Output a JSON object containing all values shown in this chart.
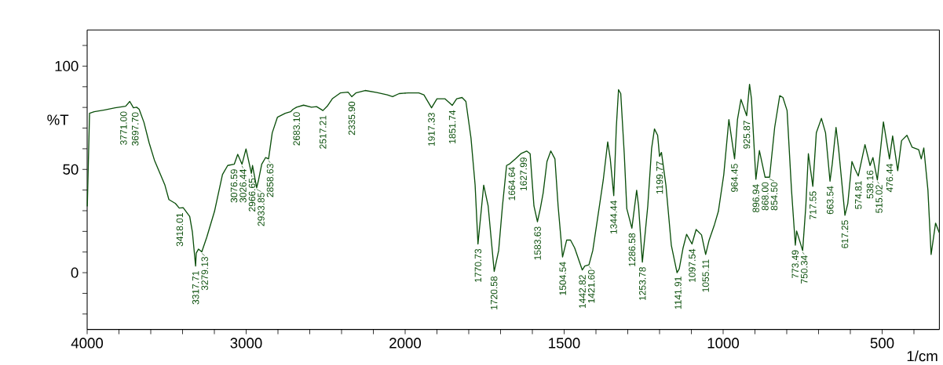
{
  "chart_data": [
    {
      "type": "line",
      "ylabel": "%T",
      "color": "#0b4f0b",
      "tick_labels": "xy",
      "x": [
        3999,
        3985,
        3956,
        3890,
        3824,
        3758,
        3732,
        3709,
        3689,
        3673,
        3643,
        3610,
        3577,
        3511,
        3486,
        3445,
        3421,
        3396,
        3355,
        3338,
        3318,
        3314,
        3300,
        3279,
        3248,
        3199,
        3149,
        3116,
        3075,
        3053,
        3026,
        3001,
        2967,
        2960,
        2934,
        2922,
        2902,
        2878,
        2859,
        2836,
        2803,
        2754,
        2721,
        2705,
        2683,
        2639,
        2589,
        2557,
        2517,
        2490,
        2458,
        2408,
        2359,
        2336,
        2310,
        2252,
        2178,
        2112,
        2079,
        2038,
        2000
      ],
      "values": [
        32.3,
        77.2,
        77.9,
        78.8,
        79.8,
        80.6,
        82.9,
        79.8,
        80.1,
        79.1,
        72.8,
        62.8,
        54.5,
        42.4,
        35.4,
        33.5,
        31.3,
        31.5,
        27.2,
        19.6,
        3.2,
        9.5,
        11.4,
        10.1,
        17.1,
        29.7,
        47.5,
        51.9,
        52.5,
        57.3,
        52.5,
        59.9,
        48.1,
        51.9,
        41.1,
        44.9,
        52.5,
        55.7,
        55.1,
        67.7,
        75.3,
        77.2,
        77.9,
        79.1,
        80.1,
        81.1,
        80.1,
        80.4,
        78.5,
        80.6,
        84.2,
        87.0,
        87.4,
        85.2,
        87.0,
        88.2,
        87.2,
        86.1,
        85.2,
        86.7,
        86.9
      ],
      "xlim": [
        4000,
        2000
      ],
      "ylim": [
        -27.5,
        117.5
      ],
      "xticks": [
        4000,
        {
          "value": 3800,
          "label": null
        },
        {
          "value": 3600,
          "label": null
        },
        {
          "value": 3400,
          "label": null
        },
        {
          "value": 3200,
          "label": null
        },
        3000,
        {
          "value": 2800,
          "label": null
        },
        {
          "value": 2600,
          "label": null
        },
        {
          "value": 2400,
          "label": null
        },
        {
          "value": 2200,
          "label": null
        }
      ],
      "yticks": [
        {
          "value": -20,
          "label": null
        },
        {
          "value": -10,
          "label": null
        },
        0,
        {
          "value": 10,
          "label": null
        },
        {
          "value": 20,
          "label": null
        },
        {
          "value": 30,
          "label": null
        },
        {
          "value": 40,
          "label": null
        },
        50,
        {
          "value": 60,
          "label": null
        },
        {
          "value": 70,
          "label": null
        },
        {
          "value": 80,
          "label": null
        },
        {
          "value": 90,
          "label": null
        },
        100,
        {
          "value": 110,
          "label": null
        }
      ],
      "annotations": [
        {
          "text": "3771.00",
          "x": 3771.0,
          "y": 80.4
        },
        {
          "text": "3697.70",
          "x": 3697.7,
          "y": 80.0
        },
        {
          "text": "3418.01",
          "x": 3418.01,
          "y": 31.3
        },
        {
          "text": "3317.71",
          "x": 3317.71,
          "y": 3.2
        },
        {
          "text": "3279.13",
          "x": 3279.13,
          "y": 10.1
        },
        {
          "text": "3076.59",
          "x": 3076.59,
          "y": 52.5
        },
        {
          "text": "3026.44",
          "x": 3026.44,
          "y": 52.5
        },
        {
          "text": "2966.65",
          "x": 2966.65,
          "y": 48.1
        },
        {
          "text": "2933.85",
          "x": 2933.85,
          "y": 41.1
        },
        {
          "text": "2858.63",
          "x": 2858.63,
          "y": 55.1
        },
        {
          "text": "2683.10",
          "x": 2683.1,
          "y": 80.1
        },
        {
          "text": "2517.21",
          "x": 2517.21,
          "y": 78.5
        },
        {
          "text": "2335.90",
          "x": 2335.9,
          "y": 85.2
        }
      ]
    },
    {
      "type": "line",
      "xlabel": "1/cm",
      "color": "#0b4f0b",
      "tick_labels": "x",
      "x": [
        2000,
        1990,
        1957,
        1941,
        1917,
        1900,
        1875,
        1852,
        1838,
        1821,
        1809,
        1793,
        1780,
        1771,
        1753,
        1739,
        1720,
        1706,
        1694,
        1681,
        1673,
        1653,
        1636,
        1618,
        1607,
        1595,
        1584,
        1575,
        1566,
        1554,
        1542,
        1529,
        1519,
        1505,
        1492,
        1480,
        1467,
        1443,
        1435,
        1422,
        1410,
        1394,
        1377,
        1363,
        1355,
        1344,
        1336,
        1329,
        1322,
        1311,
        1303,
        1287,
        1272,
        1266,
        1254,
        1237,
        1225,
        1216,
        1206,
        1200,
        1194,
        1180,
        1163,
        1145,
        1138,
        1126,
        1115,
        1098,
        1085,
        1068,
        1055,
        1044,
        1027,
        1015,
        998,
        982,
        964,
        955,
        944,
        926,
        917,
        911,
        897,
        886,
        868,
        854,
        838,
        822,
        812,
        799,
        785,
        773,
        769,
        750,
        740,
        732,
        718,
        707,
        691,
        678,
        664,
        657,
        645,
        637,
        617,
        608,
        595,
        585,
        575,
        554,
        538,
        529,
        515,
        496,
        477,
        467,
        451,
        439,
        422,
        406,
        385,
        377,
        369,
        356,
        346,
        332,
        321
      ],
      "values": [
        86.9,
        87.0,
        87.0,
        86.1,
        79.8,
        84.2,
        84.2,
        81.0,
        84.2,
        84.8,
        82.9,
        65.2,
        42.4,
        13.9,
        42.4,
        32.3,
        0.6,
        10.7,
        32.3,
        51.9,
        52.5,
        55.1,
        57.6,
        58.9,
        57.6,
        32.3,
        24.7,
        31.0,
        38.6,
        53.8,
        58.9,
        55.1,
        32.3,
        7.6,
        15.8,
        15.8,
        12.0,
        1.3,
        3.2,
        3.8,
        10.7,
        27.2,
        44.9,
        63.3,
        55.1,
        37.3,
        70.3,
        88.6,
        86.7,
        57.6,
        31.0,
        21.5,
        39.9,
        32.3,
        5.1,
        32.3,
        60.1,
        69.6,
        66.5,
        56.3,
        58.2,
        42.4,
        13.3,
        0.0,
        1.9,
        12.0,
        18.6,
        13.9,
        20.9,
        18.3,
        8.8,
        15.8,
        23.4,
        29.7,
        47.5,
        74.1,
        55.1,
        74.1,
        83.9,
        76.0,
        91.2,
        84.2,
        45.2,
        59.1,
        46.2,
        46.2,
        70.3,
        85.7,
        84.8,
        78.5,
        39.9,
        13.3,
        20.2,
        10.7,
        32.3,
        57.6,
        41.8,
        67.7,
        74.7,
        67.7,
        44.3,
        52.5,
        70.3,
        60.1,
        27.8,
        33.5,
        53.8,
        50.0,
        46.8,
        62.0,
        51.9,
        55.7,
        44.9,
        73.0,
        55.1,
        66.2,
        49.4,
        63.9,
        66.5,
        60.8,
        59.5,
        55.1,
        60.4,
        39.9,
        8.8,
        24.0,
        19.6
      ],
      "xlim": [
        2000,
        320
      ],
      "ylim": [
        -27.5,
        117.5
      ],
      "xticks": [
        2000,
        {
          "value": 1900,
          "label": null
        },
        {
          "value": 1800,
          "label": null
        },
        {
          "value": 1700,
          "label": null
        },
        {
          "value": 1600,
          "label": null
        },
        1500,
        {
          "value": 1400,
          "label": null
        },
        {
          "value": 1300,
          "label": null
        },
        {
          "value": 1200,
          "label": null
        },
        {
          "value": 1100,
          "label": null
        },
        1000,
        {
          "value": 900,
          "label": null
        },
        {
          "value": 800,
          "label": null
        },
        {
          "value": 700,
          "label": null
        },
        {
          "value": 600,
          "label": null
        },
        500,
        {
          "value": 400,
          "label": null
        }
      ],
      "annotations": [
        {
          "text": "1917.33",
          "x": 1917.33,
          "y": 79.8
        },
        {
          "text": "1851.74",
          "x": 1851.74,
          "y": 81.0
        },
        {
          "text": "1770.73",
          "x": 1770.73,
          "y": 13.9
        },
        {
          "text": "1720.58",
          "x": 1720.58,
          "y": 0.6
        },
        {
          "text": "1664.64",
          "x": 1664.64,
          "y": 53.5
        },
        {
          "text": "1627.99",
          "x": 1627.99,
          "y": 58.2
        },
        {
          "text": "1583.63",
          "x": 1583.63,
          "y": 24.7
        },
        {
          "text": "1504.54",
          "x": 1504.54,
          "y": 7.6
        },
        {
          "text": "1442.82",
          "x": 1442.82,
          "y": 1.3
        },
        {
          "text": "1421.60",
          "x": 1421.6,
          "y": 3.8
        },
        {
          "text": "1344.44",
          "x": 1344.44,
          "y": 37.3
        },
        {
          "text": "1286.58",
          "x": 1286.58,
          "y": 21.5
        },
        {
          "text": "1253.78",
          "x": 1253.78,
          "y": 5.1
        },
        {
          "text": "1199.77",
          "x": 1199.77,
          "y": 56.3
        },
        {
          "text": "1141.91",
          "x": 1141.91,
          "y": 0.5
        },
        {
          "text": "1097.54",
          "x": 1097.54,
          "y": 13.9
        },
        {
          "text": "1055.11",
          "x": 1055.11,
          "y": 8.8
        },
        {
          "text": "964.45",
          "x": 964.45,
          "y": 55.1
        },
        {
          "text": "925.87",
          "x": 925.87,
          "y": 76.0
        },
        {
          "text": "896.94",
          "x": 896.94,
          "y": 45.2
        },
        {
          "text": "868.00",
          "x": 868.0,
          "y": 46.2
        },
        {
          "text": "854.50",
          "x": 854.5,
          "y": 46.2
        },
        {
          "text": "773.49",
          "x": 773.49,
          "y": 13.3
        },
        {
          "text": "750.34",
          "x": 750.34,
          "y": 10.7
        },
        {
          "text": "717.55",
          "x": 717.55,
          "y": 41.8
        },
        {
          "text": "663.54",
          "x": 663.54,
          "y": 44.3
        },
        {
          "text": "617.25",
          "x": 617.25,
          "y": 27.8
        },
        {
          "text": "574.81",
          "x": 574.81,
          "y": 46.8
        },
        {
          "text": "538.16",
          "x": 538.16,
          "y": 51.9
        },
        {
          "text": "515.02",
          "x": 515.02,
          "y": 44.9
        },
        {
          "text": "476.44",
          "x": 476.44,
          "y": 55.1
        }
      ]
    }
  ]
}
